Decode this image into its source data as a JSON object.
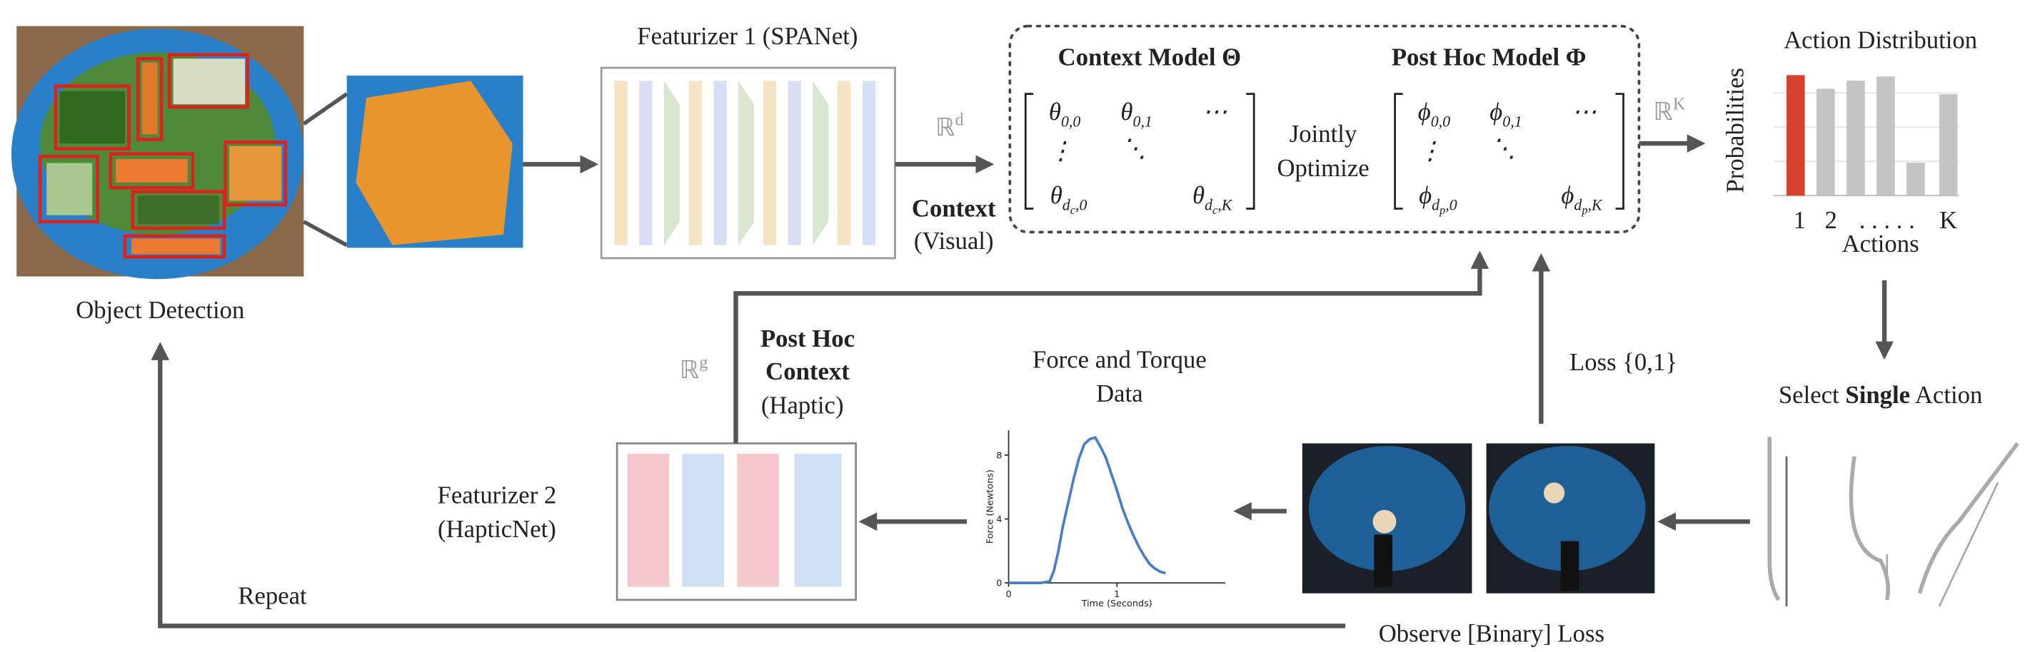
{
  "object_detection": {
    "label": "Object Detection"
  },
  "featurizer_1": {
    "title": "Featurizer 1 (SPANet)"
  },
  "context": {
    "space": {
      "sym": "ℝ",
      "sup": "d"
    },
    "label": "Context",
    "sublabel": "(Visual)"
  },
  "context_model": {
    "title": "Context Model Θ",
    "matrix": [
      {
        "sym": "θ",
        "sub": [
          "0,0"
        ]
      },
      {
        "sym": "θ",
        "sub": [
          "0,1"
        ]
      },
      {
        "sym": "⋯"
      },
      {
        "sym": "⋮"
      },
      {
        "sym": "⋱"
      },
      {
        "sym": "θ",
        "sub": [
          "d",
          "c",
          ",0"
        ]
      },
      {
        "sym": "θ",
        "sub": [
          "d",
          "c",
          ",K"
        ]
      }
    ]
  },
  "joint": {
    "line1": "Jointly",
    "line2": "Optimize"
  },
  "post_hoc_model": {
    "title": "Post Hoc Model Φ",
    "matrix": [
      {
        "sym": "ϕ",
        "sub": [
          "0,0"
        ]
      },
      {
        "sym": "ϕ",
        "sub": [
          "0,1"
        ]
      },
      {
        "sym": "⋯"
      },
      {
        "sym": "⋮"
      },
      {
        "sym": "⋱"
      },
      {
        "sym": "ϕ",
        "sub": [
          "d",
          "p",
          ",0"
        ]
      },
      {
        "sym": "ϕ",
        "sub": [
          "d",
          "p",
          ",K"
        ]
      }
    ]
  },
  "action_space": {
    "sym": "ℝ",
    "sup": "K"
  },
  "action_distribution": {
    "title": "Action Distribution",
    "y_label": "Probabilities",
    "x_label": "Actions",
    "tick_labels": [
      "1",
      "2",
      ". . . . .",
      "K"
    ],
    "values": [
      0.88,
      0.78,
      0.84,
      0.87,
      0.24,
      0.74
    ],
    "colors": [
      "#d9412f",
      "#c4c4c4",
      "#c4c4c4",
      "#c4c4c4",
      "#c4c4c4",
      "#c4c4c4"
    ],
    "ylim": [
      0,
      1
    ]
  },
  "select_action": {
    "pre": "Select ",
    "bold": "Single",
    "post": " Action"
  },
  "observe": {
    "label": "Observe [Binary] Loss"
  },
  "loss": {
    "label": "Loss {0,1}"
  },
  "force_plot": {
    "title_line1": "Force and Torque",
    "title_line2": "Data",
    "y_label": "Force (Newtons)",
    "x_label": "Time (Seconds)",
    "xlim": [
      0,
      2
    ],
    "ylim": [
      0,
      9.55
    ],
    "xticks": [
      0,
      1
    ],
    "yticks": [
      0,
      4,
      8
    ],
    "color": "#4a7cc9",
    "x": [
      0,
      0.1,
      0.2,
      0.3,
      0.38,
      0.42,
      0.46,
      0.5,
      0.55,
      0.6,
      0.65,
      0.7,
      0.75,
      0.8,
      0.85,
      0.9,
      0.95,
      1.0,
      1.05,
      1.1,
      1.15,
      1.2,
      1.25,
      1.3,
      1.35,
      1.4,
      1.45
    ],
    "y": [
      0,
      0,
      0,
      0,
      0.1,
      0.8,
      2.0,
      3.5,
      5.0,
      6.5,
      7.8,
      8.7,
      9.0,
      9.1,
      8.5,
      7.8,
      6.8,
      5.8,
      4.7,
      3.8,
      3.0,
      2.3,
      1.7,
      1.2,
      0.9,
      0.7,
      0.6
    ]
  },
  "featurizer_2": {
    "line1": "Featurizer 2",
    "line2": "(HapticNet)"
  },
  "post_hoc_context": {
    "space": {
      "sym": "ℝ",
      "sup": "g"
    },
    "line1": "Post Hoc",
    "line2": "Context",
    "sublabel": "(Haptic)"
  },
  "repeat": {
    "label": "Repeat"
  }
}
